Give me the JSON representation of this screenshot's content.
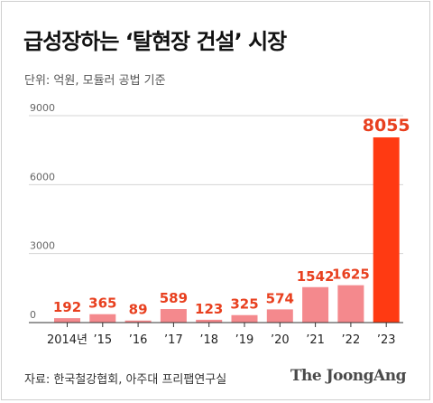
{
  "header": {
    "title": "급성장하는 ‘탈현장 건설’ 시장",
    "unit_note": "단위: 억원, 모듈러 공법 기준"
  },
  "footer": {
    "source": "자료: 한국철강협회, 아주대 프리팹연구실",
    "logo": "The JoongAng"
  },
  "colors": {
    "bar": "#f4898d",
    "highlight": "#ff3a12",
    "label": "#e8401f",
    "grid": "#d4d4d4",
    "axis_text": "#555555"
  },
  "chart_data": {
    "type": "bar",
    "title": "급성장하는 ‘탈현장 건설’ 시장",
    "subtitle": "단위: 억원, 모듈러 공법 기준",
    "categories": [
      "2014년",
      "’15",
      "’16",
      "’17",
      "’18",
      "’19",
      "’20",
      "’21",
      "’22",
      "’23"
    ],
    "values": [
      192,
      365,
      89,
      589,
      123,
      325,
      574,
      1542,
      1625,
      8055
    ],
    "highlight_index": 9,
    "ylim": [
      0,
      9000
    ],
    "yticks": [
      0,
      3000,
      6000,
      9000
    ],
    "ytick_labels": [
      "0",
      "3000",
      "6000",
      "9000"
    ],
    "grid": true,
    "xlabel": "",
    "ylabel": ""
  }
}
